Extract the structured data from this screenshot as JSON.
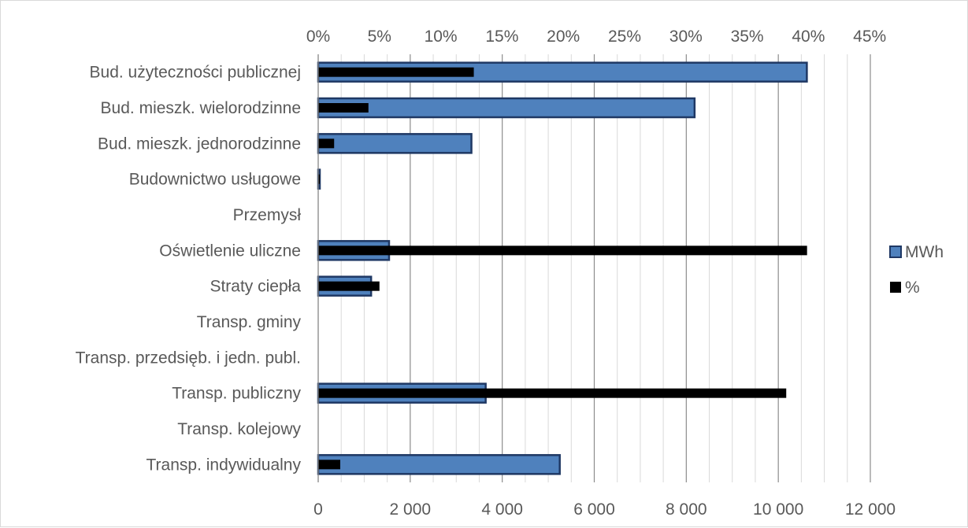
{
  "chart_data": {
    "type": "bar",
    "orientation": "horizontal",
    "categories": [
      "Bud. użyteczności publicznej",
      "Bud. mieszk. wielorodzinne",
      "Bud. mieszk. jednorodzinne",
      "Budownictwo usługowe",
      "Przemysł",
      "Oświetlenie uliczne",
      "Straty ciepła",
      "Transp. gminy",
      "Transp. przedsięb. i jedn. publ.",
      "Transp. publiczny",
      "Transp. kolejowy",
      "Transp. indywidualny"
    ],
    "series": [
      {
        "name": "MWh",
        "axis": "bottom",
        "color": "#4f81bd",
        "values": [
          10620,
          8180,
          3330,
          30,
          0,
          1540,
          1150,
          0,
          0,
          3640,
          0,
          5250
        ]
      },
      {
        "name": "%",
        "axis": "top",
        "color": "#000000",
        "values": [
          12.7,
          4.1,
          1.3,
          0.1,
          0.0,
          39.9,
          5.0,
          0.0,
          0.0,
          38.2,
          0.0,
          1.8
        ]
      }
    ],
    "x_bottom": {
      "ticks": [
        "0",
        "2 000",
        "4 000",
        "6 000",
        "8 000",
        "10 000",
        "12 000"
      ],
      "range": [
        0,
        12000
      ]
    },
    "x_top": {
      "ticks": [
        "0%",
        "5%",
        "10%",
        "15%",
        "20%",
        "25%",
        "30%",
        "35%",
        "40%",
        "45%"
      ],
      "range": [
        0,
        45
      ]
    },
    "legend_position": "right",
    "grid": true
  }
}
